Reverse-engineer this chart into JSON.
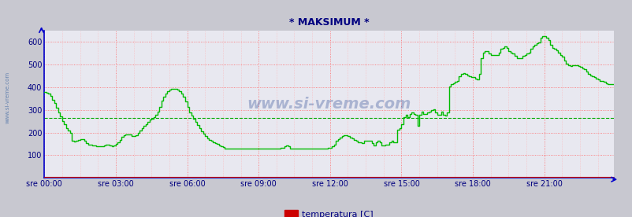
{
  "title": "* MAKSIMUM *",
  "bg_color": "#c8c8d0",
  "plot_bg_color": "#e8e8f0",
  "axis_color": "#0000cc",
  "text_color": "#000080",
  "watermark_color": "#1a3a8a",
  "side_label_color": "#4466aa",
  "ylim": [
    0,
    650
  ],
  "yticks": [
    100,
    200,
    300,
    400,
    500,
    600
  ],
  "xtick_positions": [
    0,
    36,
    72,
    108,
    144,
    180,
    216,
    252
  ],
  "xtick_labels": [
    "sre 00:00",
    "sre 03:00",
    "sre 06:00",
    "sre 09:00",
    "sre 12:00",
    "sre 15:00",
    "sre 18:00",
    "sre 21:00"
  ],
  "avg_line_value": 263,
  "avg_line_color": "#00aa00",
  "temperatura_color": "#cc0000",
  "pretok_color": "#00bb00",
  "n_points": 288,
  "pretok_values": [
    380,
    375,
    370,
    360,
    345,
    330,
    310,
    290,
    270,
    250,
    235,
    220,
    210,
    200,
    165,
    160,
    165,
    168,
    170,
    170,
    165,
    155,
    148,
    145,
    143,
    142,
    141,
    140,
    140,
    140,
    143,
    145,
    145,
    143,
    140,
    143,
    150,
    158,
    168,
    182,
    188,
    190,
    192,
    190,
    186,
    184,
    188,
    198,
    208,
    218,
    228,
    238,
    248,
    256,
    262,
    268,
    278,
    292,
    312,
    342,
    358,
    372,
    382,
    388,
    393,
    393,
    393,
    388,
    382,
    372,
    358,
    338,
    312,
    290,
    276,
    262,
    248,
    234,
    220,
    206,
    194,
    184,
    174,
    168,
    163,
    158,
    153,
    149,
    144,
    140,
    135,
    130,
    130,
    130,
    130,
    130,
    130,
    130,
    130,
    130,
    130,
    130,
    130,
    130,
    130,
    130,
    130,
    130,
    130,
    130,
    130,
    130,
    130,
    130,
    130,
    130,
    130,
    130,
    130,
    134,
    134,
    138,
    143,
    139,
    130,
    130,
    130,
    130,
    130,
    130,
    130,
    130,
    130,
    130,
    130,
    130,
    130,
    130,
    130,
    130,
    130,
    130,
    130,
    133,
    133,
    138,
    148,
    163,
    172,
    178,
    183,
    188,
    188,
    183,
    178,
    173,
    168,
    163,
    158,
    158,
    153,
    163,
    163,
    163,
    163,
    153,
    143,
    158,
    163,
    158,
    143,
    143,
    148,
    148,
    158,
    163,
    158,
    158,
    213,
    218,
    238,
    268,
    278,
    268,
    283,
    288,
    283,
    278,
    228,
    278,
    293,
    283,
    283,
    288,
    293,
    298,
    303,
    288,
    278,
    278,
    293,
    278,
    273,
    288,
    403,
    413,
    418,
    423,
    428,
    448,
    458,
    463,
    458,
    453,
    448,
    443,
    443,
    438,
    433,
    458,
    528,
    553,
    558,
    558,
    548,
    543,
    543,
    543,
    543,
    553,
    568,
    573,
    578,
    573,
    558,
    553,
    548,
    538,
    528,
    528,
    528,
    538,
    543,
    548,
    553,
    568,
    578,
    588,
    593,
    598,
    618,
    623,
    623,
    618,
    608,
    588,
    573,
    568,
    563,
    553,
    543,
    533,
    518,
    503,
    498,
    493,
    498,
    498,
    498,
    493,
    488,
    483,
    478,
    468,
    458,
    453,
    448,
    443,
    438,
    433,
    428,
    428,
    423,
    418,
    413,
    413,
    413,
    413
  ],
  "temperatura_values": [
    5,
    5,
    5,
    5,
    5,
    5,
    5,
    5,
    5,
    5,
    5,
    5,
    5,
    5,
    5,
    5,
    5,
    5,
    5,
    5,
    5,
    5,
    5,
    5,
    5,
    5,
    5,
    5,
    5,
    5,
    5,
    5,
    5,
    5,
    5,
    5,
    5,
    5,
    5,
    5,
    5,
    5,
    5,
    5,
    5,
    5,
    5,
    5,
    5,
    5,
    5,
    5,
    5,
    5,
    5,
    5,
    5,
    5,
    5,
    5,
    5,
    5,
    5,
    5,
    5,
    5,
    5,
    5,
    5,
    5,
    5,
    5,
    5,
    5,
    5,
    5,
    5,
    5,
    5,
    5,
    5,
    5,
    5,
    5,
    5,
    5,
    5,
    5,
    5,
    5,
    5,
    5,
    5,
    5,
    5,
    5,
    5,
    5,
    5,
    5,
    5,
    5,
    5,
    5,
    5,
    5,
    5,
    5,
    5,
    5,
    5,
    5,
    5,
    5,
    5,
    5,
    5,
    5,
    5,
    5,
    5,
    5,
    5,
    5,
    5,
    5,
    5,
    5,
    5,
    5,
    5,
    5,
    5,
    5,
    5,
    5,
    5,
    5,
    5,
    5,
    5,
    5,
    5,
    5,
    5,
    5,
    5,
    5,
    5,
    5,
    5,
    5,
    5,
    5,
    5,
    5,
    5,
    5,
    5,
    5,
    5,
    5,
    5,
    5,
    5,
    5,
    5,
    5,
    5,
    5,
    5,
    5,
    5,
    5,
    5,
    5,
    5,
    5,
    5,
    5,
    5,
    5,
    5,
    5,
    5,
    5,
    5,
    5,
    5,
    5,
    5,
    5,
    5,
    5,
    5,
    5,
    5,
    5,
    5,
    5,
    5,
    5,
    5,
    5,
    5,
    5,
    5,
    5,
    5,
    5,
    5,
    5,
    5,
    5,
    5,
    5,
    5,
    5,
    5,
    5,
    5,
    5,
    5,
    5,
    5,
    5,
    5,
    5,
    5,
    5,
    5,
    5,
    5,
    5,
    5,
    5,
    5,
    5,
    5,
    5,
    5,
    5,
    5,
    5,
    5,
    5,
    5,
    5,
    5,
    5,
    5,
    5,
    5,
    5,
    5,
    5,
    5,
    5,
    5,
    5,
    5,
    5,
    5,
    5,
    5,
    5,
    5,
    5,
    5,
    5,
    5,
    5,
    5,
    5,
    5,
    5,
    5,
    5,
    5,
    5,
    5,
    5,
    5,
    5,
    5,
    5,
    5,
    5
  ]
}
